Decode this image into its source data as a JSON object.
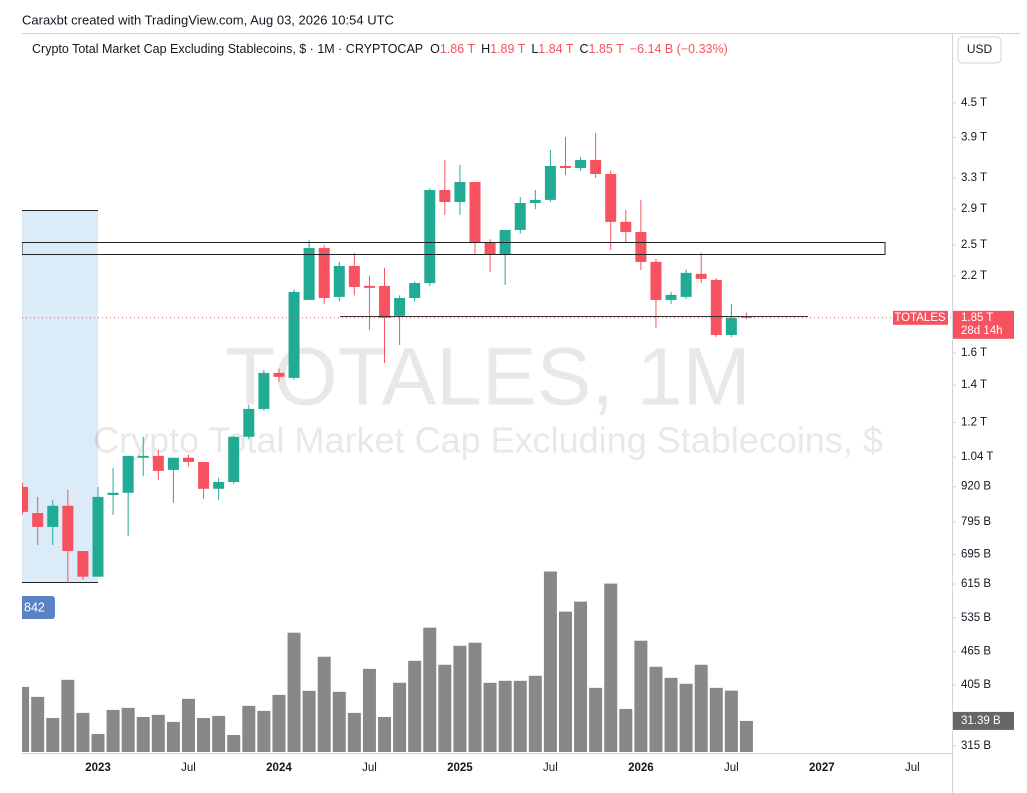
{
  "header": "Caraxbt created with TradingView.com, Aug 03, 2026 10:54 UTC",
  "chart_data": {
    "type": "candlestick",
    "title": "Crypto Total Market Cap Excluding Stablecoins, $ · 1M · CRYPTOCAP",
    "legend": [
      {
        "key": "O",
        "label": "1.86 T"
      },
      {
        "key": "H",
        "label": "1.89 T"
      },
      {
        "key": "L",
        "label": "1.84 T"
      },
      {
        "key": "C",
        "label": "1.85 T"
      }
    ],
    "change": "−6.14 B (−0.33%)",
    "watermark": "TOTALES, 1M",
    "watermark_subtitle": "Crypto Total Market Cap Excluding Stablecoins, $",
    "currency": "USD",
    "symbol": "TOTALES",
    "last_label": "1.85 T",
    "countdown": "28d 14h",
    "drawing_label": "842",
    "up_color": "#22ab94",
    "down_color": "#f7525f",
    "volume_color": "#888888",
    "log_scale": true,
    "grid": false,
    "categories": [
      null,
      null,
      null,
      null,
      null,
      "2023",
      null,
      null,
      null,
      null,
      null,
      "Jul",
      null,
      null,
      null,
      null,
      null,
      "2024",
      null,
      null,
      null,
      null,
      null,
      "Jul",
      null,
      null,
      null,
      null,
      null,
      "2025",
      null,
      null,
      null,
      null,
      null,
      "Jul",
      null,
      null,
      null,
      null,
      null,
      "2026",
      null,
      null,
      null,
      null,
      null,
      "Jul",
      null,
      null,
      null,
      null,
      null,
      "2027",
      null,
      null,
      null,
      null,
      null,
      "Jul"
    ],
    "open": [
      919,
      825,
      779,
      850,
      705,
      634,
      889,
      897,
      1037,
      1045,
      986,
      1037,
      1019,
      912,
      938,
      1131,
      1269,
      1473,
      1443,
      1992,
      2469,
      2017,
      2293,
      2111,
      2111,
      1865,
      2008,
      2136,
      3139,
      2987,
      3245,
      2522,
      2409,
      2661,
      2975,
      3013,
      3467,
      3438,
      3554,
      3354,
      2751,
      2638,
      2331,
      1992,
      2017,
      2219,
      2164,
      1723,
      1860,
      null,
      null,
      null,
      null,
      null,
      null,
      null,
      null,
      null,
      null,
      null
    ],
    "high": [
      935,
      882,
      870,
      908,
      705,
      919,
      994,
      1045,
      1131,
      1072,
      1037,
      1050,
      1019,
      954,
      1135,
      1290,
      1490,
      1500,
      2080,
      2552,
      2500,
      2330,
      2420,
      2200,
      2275,
      2030,
      2150,
      3160,
      3554,
      3482,
      3245,
      2560,
      2661,
      3050,
      3139,
      3706,
      3909,
      3600,
      3975,
      3400,
      2890,
      3013,
      2360,
      2060,
      2260,
      2420,
      2180,
      1960,
      1890,
      null,
      null,
      null,
      null,
      null,
      null,
      null,
      null,
      null,
      null,
      null
    ],
    "low": [
      820,
      723,
      723,
      618,
      626,
      634,
      819,
      750,
      962,
      946,
      861,
      1000,
      875,
      871,
      930,
      1120,
      1260,
      1420,
      1431,
      1992,
      1960,
      1980,
      2030,
      1760,
      1535,
      1654,
      1980,
      2110,
      2832,
      2832,
      2400,
      2237,
      2120,
      2620,
      2900,
      2990,
      3340,
      3400,
      3300,
      2450,
      2522,
      2255,
      1774,
      1960,
      2000,
      2136,
      1709,
      1709,
      1840,
      null,
      null,
      null,
      null,
      null,
      null,
      null,
      null,
      null,
      null,
      null
    ],
    "close": [
      829,
      779,
      850,
      705,
      634,
      882,
      897,
      1045,
      1045,
      982,
      1037,
      1019,
      912,
      938,
      1131,
      1269,
      1473,
      1449,
      2059,
      2469,
      2008,
      2293,
      2102,
      2094,
      1850,
      2008,
      2136,
      3139,
      2987,
      3245,
      2532,
      2409,
      2661,
      2975,
      3013,
      3467,
      3438,
      3554,
      3354,
      2751,
      2638,
      2331,
      1992,
      2034,
      2228,
      2173,
      1723,
      1850,
      1850,
      null,
      null,
      null,
      null,
      null,
      null,
      null,
      null,
      null,
      null,
      null
    ],
    "volume": [
      65.8,
      55.7,
      34.4,
      72.9,
      39.5,
      18.2,
      42.5,
      44.6,
      35.4,
      37.5,
      30.4,
      53.7,
      34.4,
      36.5,
      17.2,
      46.6,
      41.5,
      57.7,
      120.5,
      61.8,
      96.2,
      60.8,
      39.5,
      84,
      35.4,
      69.9,
      92.1,
      125.6,
      88.1,
      107.3,
      110.4,
      69.9,
      71.9,
      71.9,
      77,
      182.3,
      141.8,
      151.9,
      64.8,
      170.1,
      43.5,
      112.4,
      86.1,
      74.9,
      68.9,
      88.1,
      64.8,
      62,
      31.39,
      null,
      null,
      null,
      null,
      null,
      null,
      null,
      null,
      null,
      null,
      null
    ],
    "volume_labels": [
      null,
      null,
      null,
      null,
      null,
      null,
      null,
      null,
      null,
      null,
      null,
      null,
      null,
      null,
      null,
      null,
      null,
      null,
      null,
      null,
      null,
      null,
      null,
      null,
      null,
      null,
      null,
      null,
      null,
      null,
      null,
      null,
      null,
      null,
      null,
      null,
      null,
      null,
      null,
      null,
      null,
      null,
      null,
      null,
      null,
      null,
      null,
      null,
      "31.39 B",
      null,
      null,
      null,
      null,
      null,
      null,
      null,
      null,
      null,
      null,
      null
    ],
    "ylim": [
      307,
      5960
    ],
    "yticks": [
      {
        "value": 4500,
        "label": "4.5 T"
      },
      {
        "value": 3900,
        "label": "3.9 T"
      },
      {
        "value": 3300,
        "label": "3.3 T"
      },
      {
        "value": 2900,
        "label": "2.9 T"
      },
      {
        "value": 2500,
        "label": "2.5 T"
      },
      {
        "value": 2200,
        "label": "2.2 T"
      },
      {
        "value": 1600,
        "label": "1.6 T"
      },
      {
        "value": 1400,
        "label": "1.4 T"
      },
      {
        "value": 1200,
        "label": "1.2 T"
      },
      {
        "value": 1040,
        "label": "1.04 T"
      },
      {
        "value": 920,
        "label": "920 B"
      },
      {
        "value": 795,
        "label": "795 B"
      },
      {
        "value": 695,
        "label": "695 B"
      },
      {
        "value": 615,
        "label": "615 B"
      },
      {
        "value": 535,
        "label": "535 B"
      },
      {
        "value": 465,
        "label": "465 B"
      },
      {
        "value": 405,
        "label": "405 B"
      },
      {
        "value": 315,
        "label": "315 B"
      }
    ]
  }
}
